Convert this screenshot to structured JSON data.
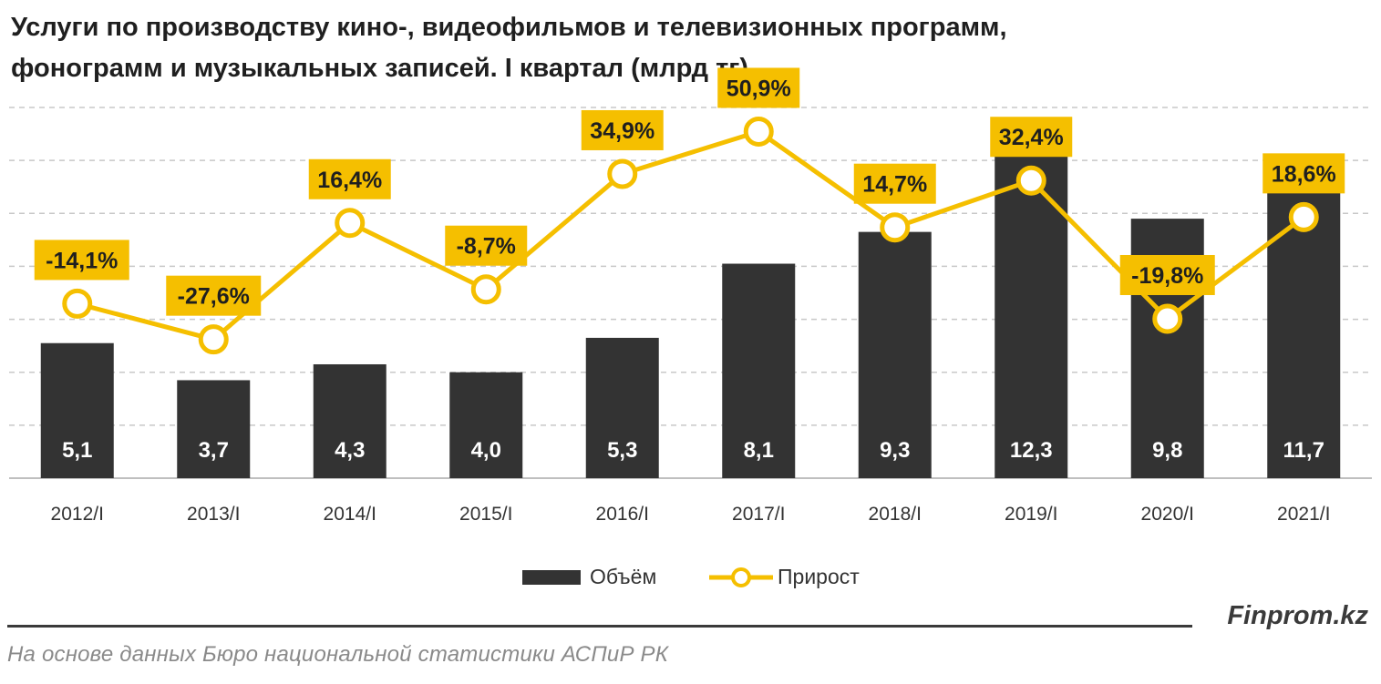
{
  "title_line1": "Услуги по производству кино-, видеофильмов и телевизионных программ,",
  "title_line2": "фонограмм и музыкальных записей. I квартал (млрд тг)",
  "brand": "Finprom.kz",
  "source": "На основе данных Бюро национальной статистики АСПиР РК",
  "colors": {
    "bar": "#333333",
    "line": "#F5BF00",
    "label_bg": "#F5BF00",
    "grid": "#C8C8C8",
    "text": "#1f1f1f"
  },
  "chart_data": {
    "type": "bar+line",
    "title": "Услуги по производству кино-, видеофильмов и телевизионных программ, фонограмм и музыкальных записей. I квартал (млрд тг)",
    "categories": [
      "2012/I",
      "2013/I",
      "2014/I",
      "2015/I",
      "2016/I",
      "2017/I",
      "2018/I",
      "2019/I",
      "2020/I",
      "2021/I"
    ],
    "series": [
      {
        "name": "Объём",
        "type": "bar",
        "values": [
          5.1,
          3.7,
          4.3,
          4.0,
          5.3,
          8.1,
          9.3,
          12.3,
          9.8,
          11.7
        ],
        "labels": [
          "5,1",
          "3,7",
          "4,3",
          "4,0",
          "5,3",
          "8,1",
          "9,3",
          "12,3",
          "9,8",
          "11,7"
        ]
      },
      {
        "name": "Прирост",
        "type": "line",
        "values": [
          -14.1,
          -27.6,
          16.4,
          -8.7,
          34.9,
          50.9,
          14.7,
          32.4,
          -19.8,
          18.6
        ],
        "labels": [
          "-14,1%",
          "-27,6%",
          "16,4%",
          "-8,7%",
          "34,9%",
          "50,9%",
          "14,7%",
          "32,4%",
          "-19,8%",
          "18,6%"
        ]
      }
    ],
    "bar_axis_range": [
      0,
      14
    ],
    "line_axis_range": [
      -80,
      60
    ],
    "grid": true,
    "legend_position": "bottom"
  }
}
